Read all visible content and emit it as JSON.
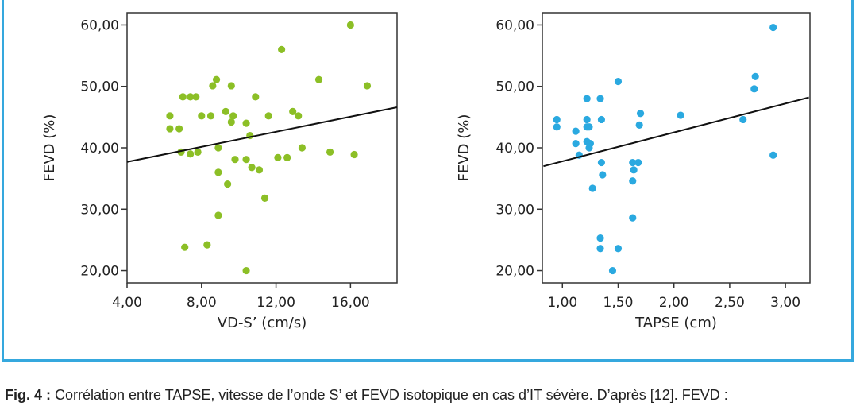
{
  "caption": {
    "label": "Fig. 4 :",
    "text": " Corrélation entre TAPSE, vitesse de l’onde S’ et FEVD isotopique en cas d’IT sévère. D’après [12]. FEVD :"
  },
  "colors": {
    "frame": "#35a8de",
    "left_points": "#8cbf26",
    "right_points": "#2aa9e0",
    "fit_line": "#111111"
  },
  "chart_data": [
    {
      "type": "scatter",
      "xlabel": "VD-S’ (cm/s)",
      "ylabel": "FEVD (%)",
      "xlim": [
        4,
        18.5
      ],
      "ylim": [
        18,
        62
      ],
      "xticks": [
        4,
        8,
        12,
        16
      ],
      "xtick_labels": [
        "4,00",
        "8,00",
        "12,00",
        "16,00"
      ],
      "yticks": [
        20,
        30,
        40,
        50,
        60
      ],
      "ytick_labels": [
        "20,00",
        "30,00",
        "40,00",
        "50,00",
        "60,00"
      ],
      "color": "#8cbf26",
      "grid": false,
      "fit_line": [
        [
          4,
          37.7
        ],
        [
          18.5,
          46.6
        ]
      ],
      "points": [
        [
          6.3,
          45.2
        ],
        [
          6.3,
          43.1
        ],
        [
          6.8,
          43.1
        ],
        [
          7.0,
          48.3
        ],
        [
          7.4,
          48.3
        ],
        [
          7.7,
          48.3
        ],
        [
          6.9,
          39.3
        ],
        [
          7.4,
          39.0
        ],
        [
          7.8,
          39.3
        ],
        [
          8.0,
          45.2
        ],
        [
          8.5,
          45.2
        ],
        [
          8.6,
          50.1
        ],
        [
          8.8,
          51.1
        ],
        [
          8.9,
          40.0
        ],
        [
          8.9,
          36.0
        ],
        [
          8.9,
          29.0
        ],
        [
          9.3,
          45.9
        ],
        [
          9.4,
          34.1
        ],
        [
          9.6,
          50.1
        ],
        [
          9.6,
          44.2
        ],
        [
          9.7,
          45.2
        ],
        [
          9.8,
          38.1
        ],
        [
          10.4,
          44.0
        ],
        [
          10.4,
          38.1
        ],
        [
          10.6,
          42.0
        ],
        [
          10.7,
          36.8
        ],
        [
          10.9,
          48.3
        ],
        [
          11.1,
          36.4
        ],
        [
          11.4,
          31.8
        ],
        [
          11.6,
          45.2
        ],
        [
          12.1,
          38.4
        ],
        [
          12.3,
          56.0
        ],
        [
          12.6,
          38.4
        ],
        [
          12.9,
          45.9
        ],
        [
          13.2,
          45.2
        ],
        [
          13.4,
          40.0
        ],
        [
          14.3,
          51.1
        ],
        [
          14.9,
          39.3
        ],
        [
          16.0,
          60.0
        ],
        [
          16.2,
          38.9
        ],
        [
          16.9,
          50.1
        ],
        [
          7.1,
          23.8
        ],
        [
          8.3,
          24.2
        ],
        [
          10.4,
          20.0
        ]
      ]
    },
    {
      "type": "scatter",
      "xlabel": "TAPSE (cm)",
      "ylabel": "FEVD (%)",
      "xlim": [
        0.82,
        3.22
      ],
      "ylim": [
        18,
        62
      ],
      "xticks": [
        1.0,
        1.5,
        2.0,
        2.5,
        3.0
      ],
      "xtick_labels": [
        "1,00",
        "1,50",
        "2,00",
        "2,50",
        "3,00"
      ],
      "yticks": [
        20,
        30,
        40,
        50,
        60
      ],
      "ytick_labels": [
        "20,00",
        "30,00",
        "40,00",
        "50,00",
        "60,00"
      ],
      "color": "#2aa9e0",
      "grid": false,
      "fit_line": [
        [
          0.83,
          37.0
        ],
        [
          3.21,
          48.2
        ]
      ],
      "points": [
        [
          0.95,
          44.6
        ],
        [
          0.95,
          43.4
        ],
        [
          1.12,
          42.7
        ],
        [
          1.12,
          40.7
        ],
        [
          1.15,
          38.8
        ],
        [
          1.22,
          48.0
        ],
        [
          1.22,
          44.6
        ],
        [
          1.22,
          43.4
        ],
        [
          1.24,
          43.4
        ],
        [
          1.22,
          41.0
        ],
        [
          1.24,
          40.0
        ],
        [
          1.25,
          40.7
        ],
        [
          1.27,
          33.4
        ],
        [
          1.34,
          48.0
        ],
        [
          1.35,
          44.6
        ],
        [
          1.35,
          37.6
        ],
        [
          1.36,
          35.6
        ],
        [
          1.34,
          25.3
        ],
        [
          1.34,
          23.6
        ],
        [
          1.45,
          20.0
        ],
        [
          1.5,
          50.8
        ],
        [
          1.5,
          23.6
        ],
        [
          1.63,
          37.6
        ],
        [
          1.64,
          36.4
        ],
        [
          1.63,
          34.6
        ],
        [
          1.63,
          28.6
        ],
        [
          1.68,
          37.6
        ],
        [
          1.69,
          43.7
        ],
        [
          1.7,
          45.6
        ],
        [
          2.06,
          45.3
        ],
        [
          2.62,
          44.6
        ],
        [
          2.72,
          49.6
        ],
        [
          2.73,
          51.6
        ],
        [
          2.89,
          59.6
        ],
        [
          2.89,
          38.8
        ]
      ]
    }
  ]
}
